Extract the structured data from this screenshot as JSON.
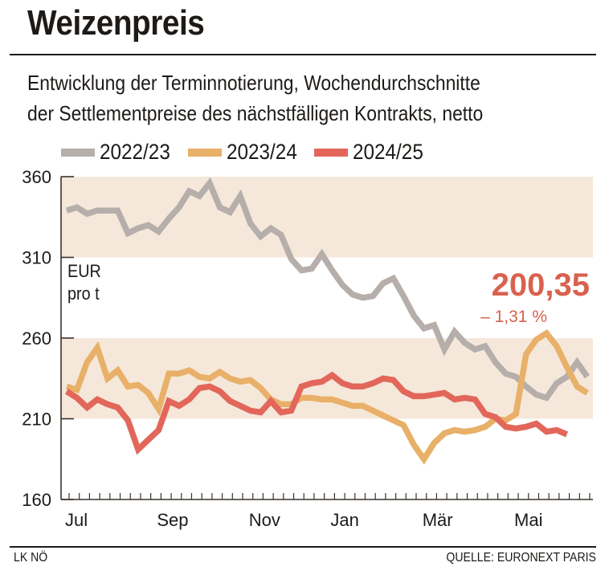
{
  "header": {
    "title": "Weizenpreis",
    "subtitle_line1": "Entwicklung der Terminnotierung, Wochendurchschnitte",
    "subtitle_line2": "der Settlementpreise des nächstfälligen Kontrakts, netto"
  },
  "colors": {
    "band": "#f5e8da",
    "axis": "#3a332d",
    "series_2022_23": "#b5aeaa",
    "series_2023_24": "#e8b068",
    "series_2024_25": "#e2675a",
    "callout": "#d9614f"
  },
  "annotation": {
    "unit_line1": "EUR",
    "unit_line2": "pro t",
    "latest_value": "200,35",
    "latest_change": "– 1,31 %"
  },
  "footer": {
    "left": "LK NÖ",
    "right": "QUELLE: EURONEXT PARIS"
  },
  "chart_data": {
    "type": "line",
    "title": "Weizenpreis",
    "xlabel": "",
    "ylabel": "EUR pro t",
    "ylim": [
      160,
      360
    ],
    "yticks": [
      160,
      210,
      260,
      310,
      360
    ],
    "shaded_bands": [
      [
        310,
        360
      ],
      [
        210,
        260
      ]
    ],
    "x_tick_count": 52,
    "month_labels": [
      {
        "label": "Jul",
        "week": 0
      },
      {
        "label": "Sep",
        "week": 9
      },
      {
        "label": "Nov",
        "week": 18
      },
      {
        "label": "Jan",
        "week": 26
      },
      {
        "label": "Mär",
        "week": 35
      },
      {
        "label": "Mai",
        "week": 44
      }
    ],
    "legend_position": "top",
    "series": [
      {
        "name": "2022/23",
        "color_key": "series_2022_23",
        "values": [
          339,
          341,
          337,
          339,
          339,
          339,
          325,
          328,
          330,
          326,
          334,
          341,
          351,
          348,
          356,
          341,
          338,
          348,
          331,
          323,
          328,
          324,
          309,
          302,
          303,
          312,
          302,
          293,
          287,
          285,
          286,
          294,
          297,
          286,
          274,
          266,
          268,
          253,
          264,
          257,
          253,
          255,
          245,
          238,
          236,
          230,
          225,
          223,
          232,
          236,
          245,
          236
        ]
      },
      {
        "name": "2023/24",
        "color_key": "series_2023_24",
        "values": [
          230,
          228,
          245,
          254,
          235,
          240,
          230,
          231,
          226,
          216,
          238,
          238,
          240,
          236,
          235,
          239,
          235,
          233,
          234,
          229,
          222,
          219,
          219,
          223,
          223,
          222,
          222,
          220,
          218,
          218,
          215,
          212,
          209,
          206,
          194,
          185,
          195,
          201,
          203,
          202,
          203,
          205,
          210,
          209,
          213,
          250,
          259,
          263,
          255,
          242,
          230,
          226
        ]
      },
      {
        "name": "2024/25",
        "color_key": "series_2024_25",
        "values": [
          227,
          223,
          217,
          222,
          219,
          217,
          209,
          191,
          197,
          203,
          221,
          218,
          222,
          229,
          230,
          227,
          221,
          218,
          215,
          214,
          221,
          214,
          215,
          230,
          232,
          233,
          237,
          232,
          230,
          230,
          232,
          235,
          234,
          227,
          224,
          224,
          225,
          226,
          222,
          223,
          222,
          213,
          211,
          205,
          204,
          205,
          207,
          202,
          203,
          200.35
        ]
      }
    ]
  }
}
